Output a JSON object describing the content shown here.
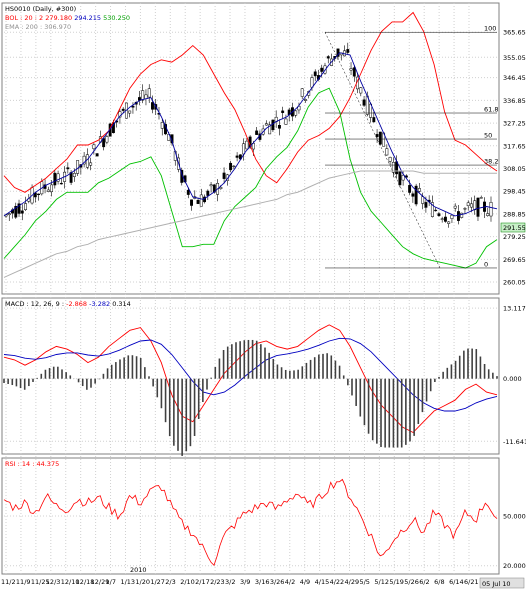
{
  "header": {
    "title": "HS0010 (Daily, #300)",
    "bol_label": "BOL : 20 : 2",
    "bol_mid": "279.180",
    "bol_upper": "294.215",
    "bol_lower": "530.250",
    "ema_label": "EMA : 200 : 306.970",
    "macd_label": "MACD : 12, 26, 9 :",
    "macd_val1": "-2.868",
    "macd_val2": "-3.282",
    "macd_val3": "0.314",
    "rsi_label": "RSI : 14 : 44.375"
  },
  "colors": {
    "price_candle": "#000000",
    "bollinger": "#ff0000",
    "bollinger_mid": "#0000a0",
    "bollinger_lower": "#00c000",
    "ema200": "#b0b0b0",
    "macd_line": "#ff0000",
    "macd_signal": "#0000c0",
    "histogram": "#000000",
    "rsi": "#ff0000",
    "last_price_box": "#c8f0c8"
  },
  "price_axis": [
    "365.65",
    "355.05",
    "346.45",
    "336.85",
    "327.25",
    "317.65",
    "308.05",
    "298.45",
    "288.85",
    "279.25",
    "269.65",
    "260.05"
  ],
  "macd_axis": [
    "13.117",
    "0.000",
    "-11.641"
  ],
  "rsi_axis": [
    "50.000",
    "20.000"
  ],
  "last_price": "291.55",
  "fib_labels": [
    "100",
    "61.8",
    "50",
    "38.2",
    "0"
  ],
  "date_labels": [
    "11/2",
    "11/9",
    "11/25",
    "12/3",
    "12/10",
    "12/18",
    "12/29",
    "1/7",
    "1/13",
    "1/20",
    "1/27",
    "2/3",
    "2/10",
    "2/17",
    "2/23",
    "3/2",
    "3/9",
    "3/16",
    "3/26",
    "4/2",
    "4/9",
    "4/15",
    "4/22",
    "4/29",
    "5/5",
    "5/12",
    "5/19",
    "5/26",
    "6/2",
    "6/8",
    "6/14",
    "6/21"
  ],
  "year_label": "2010",
  "last_date": "05 Jul 10",
  "chart_data": [
    {
      "type": "line",
      "title": "HS0010 (Daily, #300)",
      "ylim": [
        255.0,
        378.0
      ],
      "series": [
        {
          "name": "BOL : 20 : 2 (upper)",
          "values": [
            305,
            300,
            298,
            301,
            304,
            308,
            312,
            318,
            318,
            320,
            324,
            333,
            342,
            348,
            352,
            354,
            353,
            356,
            360,
            356,
            348,
            340,
            333,
            323,
            312,
            305,
            302,
            308,
            315,
            320,
            322,
            325,
            330,
            338,
            348,
            358,
            366,
            370,
            370,
            374,
            366,
            352,
            332,
            320,
            318,
            314,
            310,
            307
          ]
        },
        {
          "name": "BOL : 20 : 2 (mid)",
          "values": [
            288,
            291,
            294,
            298,
            301,
            303,
            305,
            308,
            312,
            318,
            324,
            330,
            334,
            337,
            338,
            330,
            320,
            305,
            296,
            295,
            298,
            302,
            308,
            315,
            320,
            325,
            328,
            330,
            334,
            340,
            346,
            352,
            357,
            356,
            345,
            335,
            325,
            315,
            306,
            300,
            296,
            292,
            290,
            288,
            289,
            291,
            292,
            291
          ]
        },
        {
          "name": "BOL : 20 : 2 (lower)",
          "values": [
            270,
            275,
            280,
            286,
            290,
            295,
            298,
            298,
            298,
            302,
            304,
            307,
            310,
            311,
            313,
            305,
            290,
            275,
            275,
            276,
            276,
            286,
            292,
            296,
            300,
            308,
            313,
            317,
            324,
            334,
            340,
            342,
            332,
            312,
            298,
            290,
            285,
            280,
            275,
            272,
            270,
            269,
            268,
            267,
            266,
            268,
            275,
            278
          ]
        },
        {
          "name": "EMA : 200",
          "values": [
            262,
            264,
            266,
            268,
            270,
            272,
            273,
            275,
            276,
            278,
            279,
            280,
            281,
            282,
            283,
            284,
            285,
            286,
            287,
            288,
            289,
            290,
            291,
            292,
            293,
            294,
            295,
            297,
            298,
            300,
            302,
            304,
            305,
            306,
            307,
            307,
            307,
            307,
            307,
            307,
            306,
            306,
            306,
            306,
            306,
            306,
            306,
            306
          ]
        }
      ]
    },
    {
      "type": "line",
      "title": "MACD : 12, 26, 9",
      "ylim": [
        -14.0,
        15.0
      ],
      "series": [
        {
          "name": "MACD",
          "values": [
            4.0,
            3.5,
            2.5,
            3.5,
            5.0,
            6.0,
            5.5,
            4.5,
            3.0,
            4.0,
            6.0,
            7.5,
            9.0,
            9.5,
            7.0,
            3.0,
            -3.0,
            -7.0,
            -8.0,
            -5.0,
            -2.0,
            1.0,
            3.0,
            5.0,
            6.5,
            7.0,
            6.0,
            5.5,
            6.0,
            7.5,
            9.0,
            10.0,
            9.0,
            6.0,
            2.0,
            -2.0,
            -5.0,
            -7.0,
            -9.0,
            -10.0,
            -8.0,
            -6.0,
            -5.0,
            -4.0,
            -2.0,
            -1.0,
            -2.5,
            -3.0
          ]
        },
        {
          "name": "Signal",
          "values": [
            4.5,
            4.3,
            3.8,
            3.6,
            3.9,
            4.5,
            4.8,
            4.8,
            4.4,
            4.2,
            4.6,
            5.3,
            6.2,
            7.0,
            7.2,
            6.4,
            4.5,
            2.0,
            -0.5,
            -2.5,
            -3.0,
            -2.5,
            -1.2,
            0.5,
            2.0,
            3.5,
            4.3,
            4.6,
            5.0,
            5.5,
            6.2,
            7.0,
            7.5,
            7.4,
            6.5,
            5.0,
            3.0,
            1.0,
            -1.0,
            -3.0,
            -4.5,
            -5.5,
            -6.0,
            -6.0,
            -5.5,
            -4.5,
            -3.8,
            -3.3
          ]
        }
      ]
    },
    {
      "type": "line",
      "title": "RSI : 14",
      "ylim": [
        15.0,
        85.0
      ],
      "series": [
        {
          "name": "RSI",
          "values": [
            60,
            55,
            58,
            52,
            62,
            56,
            54,
            60,
            58,
            61,
            55,
            50,
            62,
            58,
            65,
            68,
            55,
            45,
            40,
            30,
            22,
            38,
            45,
            52,
            55,
            58,
            54,
            60,
            64,
            56,
            60,
            68,
            72,
            62,
            50,
            38,
            24,
            35,
            42,
            48,
            40,
            52,
            45,
            38,
            52,
            48,
            60,
            46
          ]
        }
      ]
    }
  ]
}
